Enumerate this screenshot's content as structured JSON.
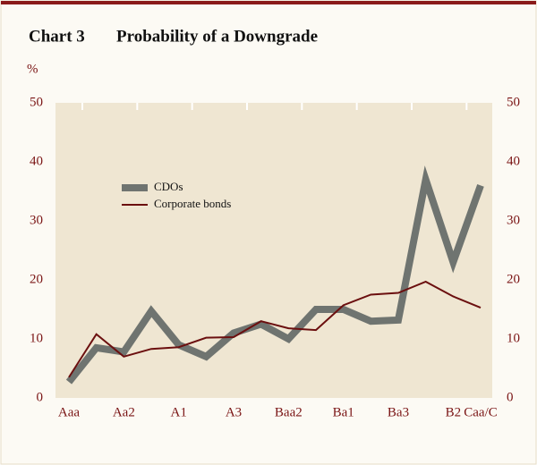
{
  "chart_data": {
    "type": "line",
    "chart_number": "Chart 3",
    "title": "Probability of a Downgrade",
    "y_unit": "%",
    "categories": [
      "Aaa",
      null,
      "Aa2",
      null,
      "A1",
      null,
      "A3",
      null,
      "Baa2",
      null,
      "Ba1",
      null,
      "Ba3",
      null,
      "B2",
      "Caa/C"
    ],
    "series": [
      {
        "name": "CDOs",
        "color": "#6f7470",
        "width": 8,
        "values": [
          2.7,
          8.5,
          7.8,
          14.7,
          9,
          7,
          11,
          12.5,
          10,
          15,
          15,
          13,
          13.2,
          37,
          23,
          36
        ]
      },
      {
        "name": "Corporate bonds",
        "color": "#6b0f0f",
        "width": 2,
        "values": [
          3.5,
          10.8,
          7,
          8.3,
          8.6,
          10.2,
          10.3,
          13,
          11.8,
          11.5,
          15.7,
          17.5,
          17.8,
          19.7,
          17.2,
          15.3
        ]
      }
    ],
    "ylim": [
      0,
      50
    ],
    "yticks": [
      0,
      10,
      20,
      30,
      40,
      50
    ],
    "y2lim": [
      0,
      50
    ],
    "y2ticks": [
      0,
      10,
      20,
      30,
      40,
      50
    ]
  }
}
